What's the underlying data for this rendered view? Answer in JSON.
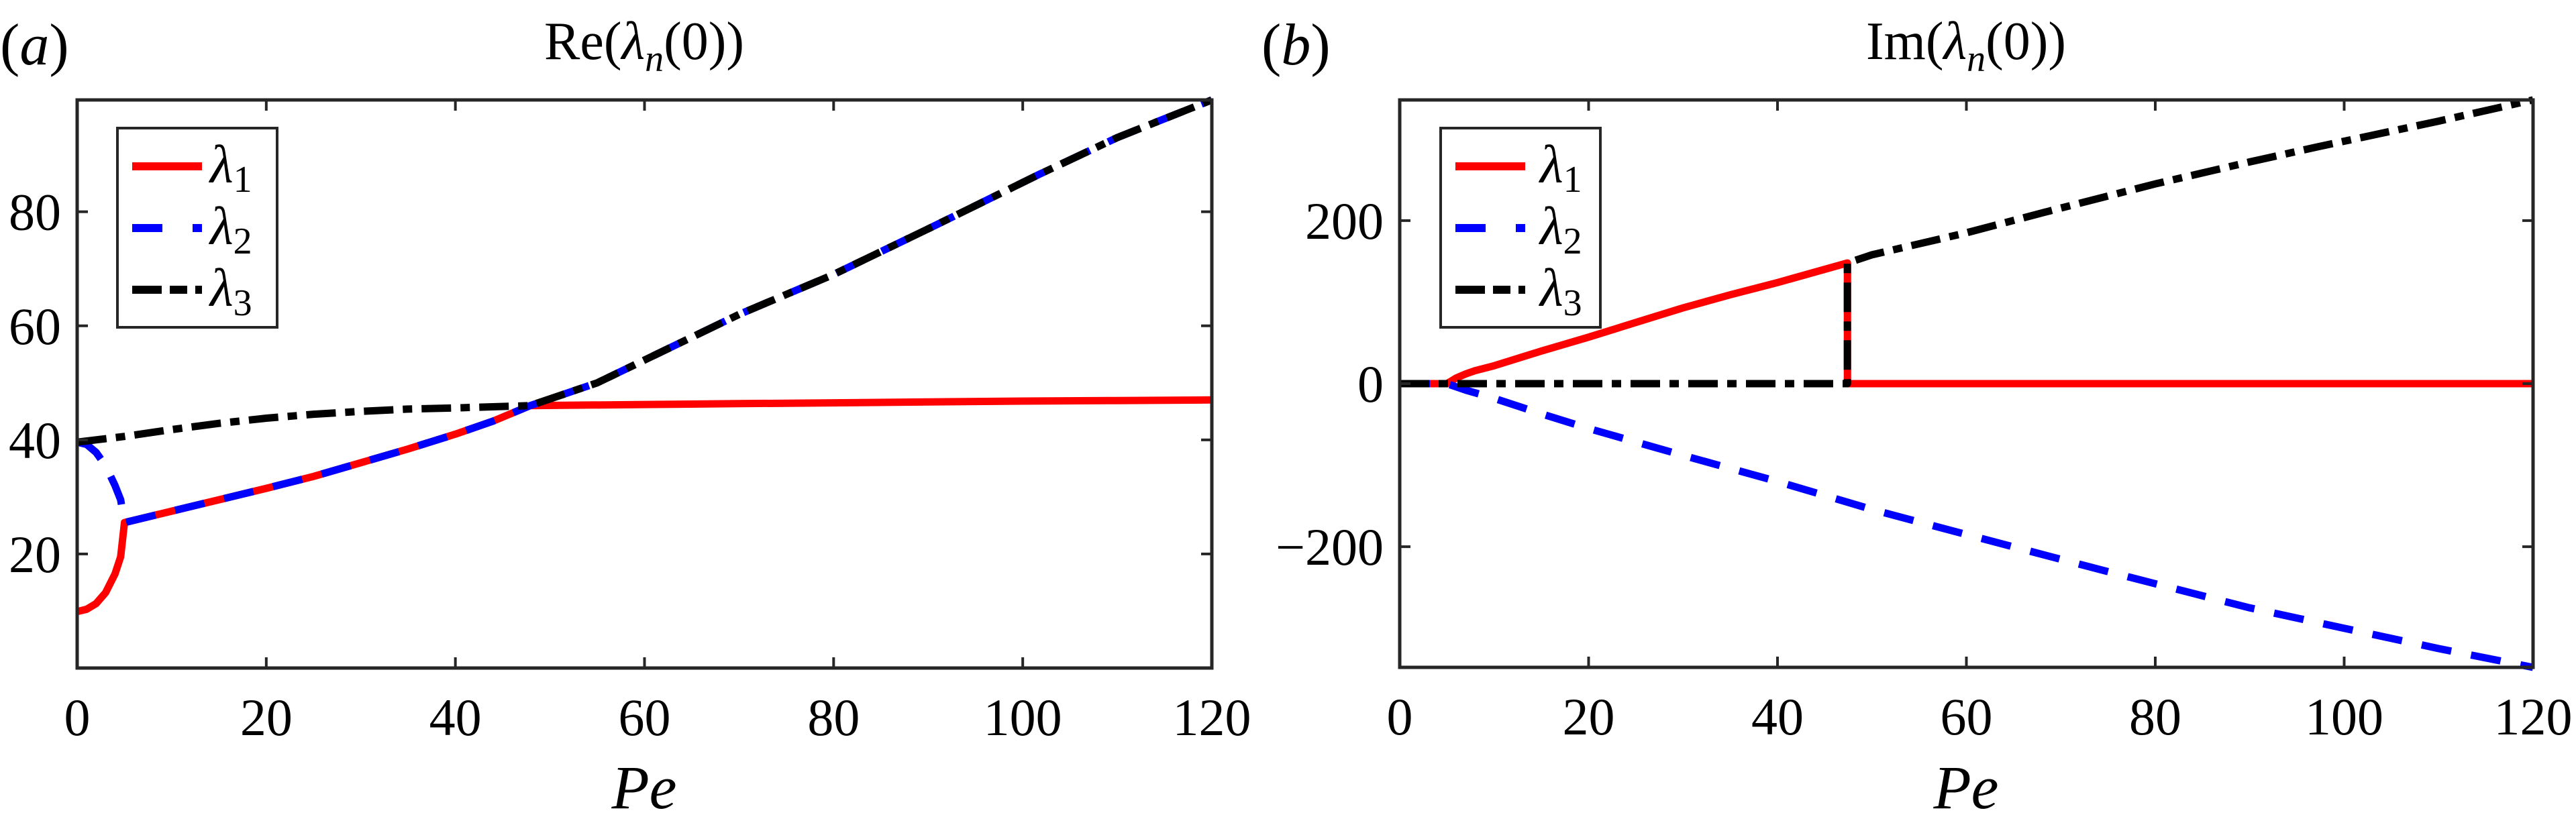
{
  "figure": {
    "panels": [
      {
        "label": "(a)",
        "label_letter": "a",
        "title_prefix": "Re",
        "title_symbol": "λ",
        "title_sub": "n",
        "title_suffix": "(0))",
        "title": "Re(λn(0))",
        "xlabel": "Pe",
        "xticks": [
          "0",
          "20",
          "40",
          "60",
          "80",
          "100",
          "120"
        ],
        "yticks": [
          "20",
          "40",
          "60",
          "80"
        ],
        "legend": [
          {
            "symbol": "λ",
            "sub": "1",
            "color": "#ff0000",
            "style": "solid"
          },
          {
            "symbol": "λ",
            "sub": "2",
            "color": "#0000ff",
            "style": "dashed"
          },
          {
            "symbol": "λ",
            "sub": "3",
            "color": "#000000",
            "style": "dashdot"
          }
        ]
      },
      {
        "label": "(b)",
        "label_letter": "b",
        "title_prefix": "Im",
        "title_symbol": "λ",
        "title_sub": "n",
        "title_suffix": "(0))",
        "title": "Im(λn(0))",
        "xlabel": "Pe",
        "xticks": [
          "0",
          "20",
          "40",
          "60",
          "80",
          "100",
          "120"
        ],
        "yticks": [
          "−200",
          "0",
          "200"
        ],
        "legend": [
          {
            "symbol": "λ",
            "sub": "1",
            "color": "#ff0000",
            "style": "solid"
          },
          {
            "symbol": "λ",
            "sub": "2",
            "color": "#0000ff",
            "style": "dashed"
          },
          {
            "symbol": "λ",
            "sub": "3",
            "color": "#000000",
            "style": "dashdot"
          }
        ]
      }
    ]
  },
  "chart_data": [
    {
      "type": "line",
      "title": "Re(λn(0))",
      "panel": "(a)",
      "xlabel": "Pe",
      "ylabel": "",
      "xlim": [
        0,
        120
      ],
      "ylim": [
        0,
        99.6
      ],
      "xticks": [
        0,
        20,
        40,
        60,
        80,
        100,
        120
      ],
      "yticks": [
        20,
        40,
        60,
        80
      ],
      "grid": false,
      "legend_position": "upper left",
      "series": [
        {
          "name": "λ1",
          "color": "#ff0000",
          "style": "solid",
          "x": [
            0,
            1,
            2,
            3,
            4,
            4.6,
            5,
            10,
            15,
            20,
            25,
            30,
            35,
            40,
            44,
            47.9,
            60,
            70,
            80,
            90,
            100,
            110,
            120
          ],
          "y": [
            9.9,
            10.3,
            11.3,
            13.2,
            16.5,
            19.5,
            25.5,
            27.5,
            29.5,
            31.5,
            33.6,
            36,
            38.4,
            41,
            43.3,
            46,
            46.2,
            46.35,
            46.5,
            46.65,
            46.8,
            46.9,
            47
          ]
        },
        {
          "name": "λ2",
          "color": "#0000ff",
          "style": "dashed",
          "x": [
            0,
            1,
            2,
            3,
            4,
            4.6,
            5,
            10,
            15,
            20,
            25,
            30,
            35,
            40,
            44,
            47.9,
            55,
            60,
            70,
            80,
            90,
            101.8,
            110,
            120
          ],
          "y": [
            39.6,
            39.2,
            37.8,
            35.5,
            32,
            29.5,
            25.5,
            27.5,
            29.5,
            31.5,
            33.6,
            36,
            38.4,
            41,
            43.3,
            46,
            50,
            54,
            62,
            69,
            77,
            86.6,
            93,
            99.6
          ]
        },
        {
          "name": "λ3",
          "color": "#000000",
          "style": "dashdot",
          "x": [
            0,
            5,
            10,
            15,
            20,
            25,
            30,
            35,
            40,
            47.9,
            55,
            60,
            70,
            80,
            90,
            101.8,
            110,
            120
          ],
          "y": [
            39.6,
            40.6,
            41.8,
            42.9,
            43.8,
            44.5,
            45,
            45.4,
            45.6,
            46,
            50,
            54,
            62,
            69,
            77,
            86.6,
            93,
            99.6
          ]
        }
      ]
    },
    {
      "type": "line",
      "title": "Im(λn(0))",
      "panel": "(b)",
      "xlabel": "Pe",
      "ylabel": "",
      "xlim": [
        0,
        120
      ],
      "ylim": [
        -348,
        348
      ],
      "xticks": [
        0,
        20,
        40,
        60,
        80,
        100,
        120
      ],
      "yticks": [
        -200,
        0,
        200
      ],
      "grid": false,
      "legend_position": "upper left",
      "series": [
        {
          "name": "λ1",
          "color": "#ff0000",
          "style": "solid",
          "x": [
            0,
            5,
            6,
            7,
            8,
            10,
            15,
            20,
            25,
            30,
            35,
            40,
            47.4,
            47.4,
            60,
            80,
            100,
            120
          ],
          "y": [
            0,
            0,
            7,
            12,
            16,
            22,
            40,
            57,
            75,
            93,
            109,
            124,
            148,
            0,
            0,
            0,
            0,
            0
          ]
        },
        {
          "name": "λ2",
          "color": "#0000ff",
          "style": "dashed",
          "x": [
            0,
            5,
            7,
            10,
            15,
            20,
            30,
            40,
            50.2,
            60,
            74.8,
            90,
            100,
            110,
            120
          ],
          "y": [
            0,
            0,
            -8,
            -18,
            -37,
            -55,
            -88,
            -120,
            -155,
            -185,
            -230,
            -275,
            -300,
            -325,
            -348
          ]
        },
        {
          "name": "λ3",
          "color": "#000000",
          "style": "dashdot",
          "x": [
            0,
            47.4,
            47.4,
            50,
            60,
            69.2,
            80,
            90,
            97,
            110,
            120
          ],
          "y": [
            0,
            0,
            148,
            158,
            185,
            213,
            245,
            272,
            290,
            322,
            348
          ]
        }
      ]
    }
  ]
}
